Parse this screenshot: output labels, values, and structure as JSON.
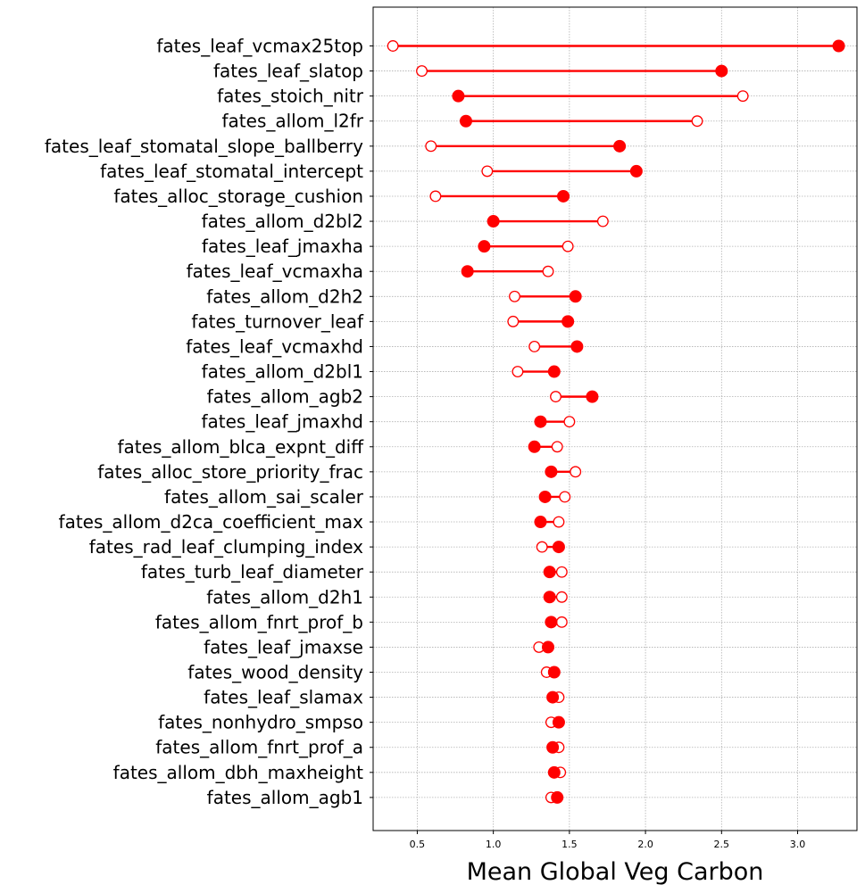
{
  "chart_data": {
    "type": "dumbbell",
    "xlabel": "Mean Global Veg Carbon",
    "xlim": [
      0.21,
      3.39
    ],
    "xticks": [
      0.5,
      1.0,
      1.5,
      2.0,
      2.5,
      3.0
    ],
    "xtick_labels": [
      "0.5",
      "1.0",
      "1.5",
      "2.0",
      "2.5",
      "3.0"
    ],
    "grid": true,
    "color": "#ff0000",
    "marker_legend": null,
    "rows": [
      {
        "param": "fates_leaf_vcmax25top",
        "open": 0.34,
        "filled": 3.27
      },
      {
        "param": "fates_leaf_slatop",
        "open": 0.53,
        "filled": 2.5
      },
      {
        "param": "fates_stoich_nitr",
        "open": 2.64,
        "filled": 0.77
      },
      {
        "param": "fates_allom_l2fr",
        "open": 2.34,
        "filled": 0.82
      },
      {
        "param": "fates_leaf_stomatal_slope_ballberry",
        "open": 0.59,
        "filled": 1.83
      },
      {
        "param": "fates_leaf_stomatal_intercept",
        "open": 0.96,
        "filled": 1.94
      },
      {
        "param": "fates_alloc_storage_cushion",
        "open": 0.62,
        "filled": 1.46
      },
      {
        "param": "fates_allom_d2bl2",
        "open": 1.72,
        "filled": 1.0
      },
      {
        "param": "fates_leaf_jmaxha",
        "open": 1.49,
        "filled": 0.94
      },
      {
        "param": "fates_leaf_vcmaxha",
        "open": 1.36,
        "filled": 0.83
      },
      {
        "param": "fates_allom_d2h2",
        "open": 1.14,
        "filled": 1.54
      },
      {
        "param": "fates_turnover_leaf",
        "open": 1.13,
        "filled": 1.49
      },
      {
        "param": "fates_leaf_vcmaxhd",
        "open": 1.27,
        "filled": 1.55
      },
      {
        "param": "fates_allom_d2bl1",
        "open": 1.16,
        "filled": 1.4
      },
      {
        "param": "fates_allom_agb2",
        "open": 1.41,
        "filled": 1.65
      },
      {
        "param": "fates_leaf_jmaxhd",
        "open": 1.5,
        "filled": 1.31
      },
      {
        "param": "fates_allom_blca_expnt_diff",
        "open": 1.42,
        "filled": 1.27
      },
      {
        "param": "fates_alloc_store_priority_frac",
        "open": 1.54,
        "filled": 1.38
      },
      {
        "param": "fates_allom_sai_scaler",
        "open": 1.47,
        "filled": 1.34
      },
      {
        "param": "fates_allom_d2ca_coefficient_max",
        "open": 1.43,
        "filled": 1.31
      },
      {
        "param": "fates_rad_leaf_clumping_index",
        "open": 1.32,
        "filled": 1.43
      },
      {
        "param": "fates_turb_leaf_diameter",
        "open": 1.45,
        "filled": 1.37
      },
      {
        "param": "fates_allom_d2h1",
        "open": 1.45,
        "filled": 1.37
      },
      {
        "param": "fates_allom_fnrt_prof_b",
        "open": 1.45,
        "filled": 1.38
      },
      {
        "param": "fates_leaf_jmaxse",
        "open": 1.3,
        "filled": 1.36
      },
      {
        "param": "fates_wood_density",
        "open": 1.35,
        "filled": 1.4
      },
      {
        "param": "fates_leaf_slamax",
        "open": 1.43,
        "filled": 1.39
      },
      {
        "param": "fates_nonhydro_smpso",
        "open": 1.38,
        "filled": 1.43
      },
      {
        "param": "fates_allom_fnrt_prof_a",
        "open": 1.43,
        "filled": 1.39
      },
      {
        "param": "fates_allom_dbh_maxheight",
        "open": 1.44,
        "filled": 1.4
      },
      {
        "param": "fates_allom_agb1",
        "open": 1.38,
        "filled": 1.42
      }
    ]
  }
}
